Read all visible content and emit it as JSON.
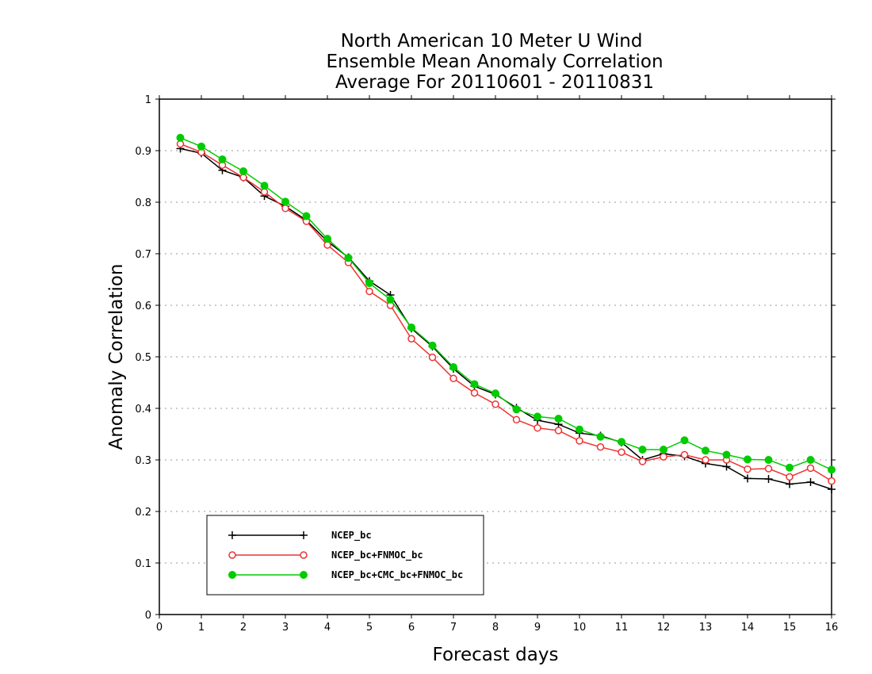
{
  "chart_data": {
    "type": "line",
    "title": [
      "North American 10 Meter U Wind",
      "Ensemble Mean Anomaly Correlation",
      "Average For 20110601 - 20110831"
    ],
    "xlabel": "Forecast days",
    "ylabel": "Anomaly Correlation",
    "xlim": [
      0,
      16
    ],
    "ylim": [
      0,
      1
    ],
    "x_ticks": [
      "0",
      "1",
      "2",
      "3",
      "4",
      "5",
      "6",
      "7",
      "8",
      "9",
      "10",
      "11",
      "12",
      "13",
      "14",
      "15",
      "16"
    ],
    "y_ticks": [
      "0",
      "0.1",
      "0.2",
      "0.3",
      "0.4",
      "0.5",
      "0.6",
      "0.7",
      "0.8",
      "0.9",
      "1"
    ],
    "grid": "horizontal dotted",
    "legend_position": "bottom-left",
    "x": [
      0.5,
      1,
      1.5,
      2,
      2.5,
      3,
      3.5,
      4,
      4.5,
      5,
      5.5,
      6,
      6.5,
      7,
      7.5,
      8,
      8.5,
      9,
      9.5,
      10,
      10.5,
      11,
      11.5,
      12,
      12.5,
      13,
      13.5,
      14,
      14.5,
      15,
      15.5,
      16
    ],
    "series": [
      {
        "name": "NCEP_bc",
        "color": "#000000",
        "marker": "plus",
        "values": [
          0.904,
          0.895,
          0.862,
          0.848,
          0.812,
          0.792,
          0.765,
          0.724,
          0.693,
          0.647,
          0.62,
          0.555,
          0.52,
          0.477,
          0.443,
          0.427,
          0.401,
          0.377,
          0.369,
          0.352,
          0.347,
          0.334,
          0.3,
          0.312,
          0.307,
          0.293,
          0.287,
          0.264,
          0.263,
          0.253,
          0.257,
          0.243
        ]
      },
      {
        "name": "NCEP_bc+FNMOC_bc",
        "color": "#ee3333",
        "marker": "open-circle",
        "values": [
          0.913,
          0.897,
          0.872,
          0.848,
          0.82,
          0.788,
          0.763,
          0.717,
          0.683,
          0.627,
          0.6,
          0.535,
          0.499,
          0.458,
          0.43,
          0.408,
          0.378,
          0.362,
          0.357,
          0.337,
          0.325,
          0.315,
          0.297,
          0.306,
          0.31,
          0.3,
          0.3,
          0.282,
          0.283,
          0.267,
          0.284,
          0.259
        ]
      },
      {
        "name": "NCEP_bc+CMC_bc+FNMOC_bc",
        "color": "#00cc00",
        "marker": "filled-circle",
        "values": [
          0.925,
          0.908,
          0.883,
          0.86,
          0.832,
          0.801,
          0.773,
          0.729,
          0.692,
          0.643,
          0.611,
          0.557,
          0.522,
          0.48,
          0.447,
          0.429,
          0.398,
          0.384,
          0.38,
          0.359,
          0.345,
          0.335,
          0.32,
          0.32,
          0.338,
          0.318,
          0.31,
          0.301,
          0.3,
          0.285,
          0.3,
          0.281
        ]
      }
    ]
  }
}
